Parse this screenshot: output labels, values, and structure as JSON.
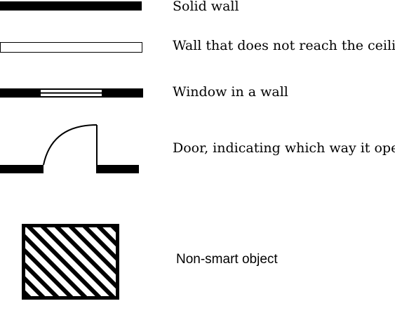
{
  "legend": {
    "items": [
      {
        "symbol": "solid-wall",
        "label": "Solid wall"
      },
      {
        "symbol": "partial-wall",
        "label": "Wall that does not reach the ceiling"
      },
      {
        "symbol": "window-in-wall",
        "label": "Window in a wall"
      },
      {
        "symbol": "door-swing",
        "label": "Door, indicating which way it opens"
      },
      {
        "symbol": "hatched-rectangle",
        "label": "Non-smart object"
      }
    ]
  },
  "colors": {
    "ink": "#000000",
    "paper": "#ffffff"
  }
}
